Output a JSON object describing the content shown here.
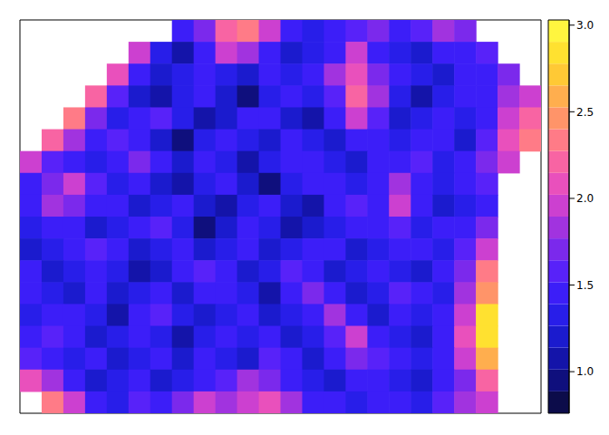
{
  "chart_data": {
    "type": "heatmap",
    "tick_labels": false,
    "cells": [
      [
        null,
        null,
        null,
        null,
        null,
        null,
        null,
        1.4,
        1.7,
        2.2,
        2.3,
        1.9,
        1.4,
        1.3,
        1.5,
        1.6,
        1.7,
        1.5,
        1.6,
        1.8,
        1.7,
        null,
        null,
        null
      ],
      [
        null,
        null,
        null,
        null,
        null,
        1.9,
        1.3,
        1.1,
        1.5,
        2.0,
        1.8,
        1.4,
        1.2,
        1.3,
        1.5,
        1.9,
        1.5,
        1.3,
        1.2,
        1.4,
        1.5,
        1.6,
        null,
        null
      ],
      [
        null,
        null,
        null,
        null,
        2.1,
        1.5,
        1.2,
        1.3,
        1.4,
        1.3,
        1.2,
        1.4,
        1.3,
        1.5,
        1.8,
        2.1,
        1.7,
        1.4,
        1.3,
        1.2,
        1.4,
        1.5,
        1.7,
        null
      ],
      [
        null,
        null,
        null,
        2.2,
        1.6,
        1.2,
        1.1,
        1.3,
        1.5,
        1.2,
        1.0,
        1.3,
        1.4,
        1.3,
        1.6,
        2.2,
        1.8,
        1.3,
        1.1,
        1.3,
        1.5,
        1.4,
        1.8,
        2.0
      ],
      [
        null,
        null,
        2.3,
        1.7,
        1.3,
        1.4,
        1.6,
        1.3,
        1.1,
        1.2,
        1.4,
        1.5,
        1.2,
        1.1,
        1.4,
        1.9,
        1.6,
        1.2,
        1.3,
        1.5,
        1.3,
        1.5,
        2.0,
        2.2
      ],
      [
        null,
        2.2,
        1.8,
        1.4,
        1.6,
        1.5,
        1.2,
        1.0,
        1.3,
        1.5,
        1.3,
        1.2,
        1.4,
        1.3,
        1.2,
        1.5,
        1.4,
        1.3,
        1.5,
        1.4,
        1.2,
        1.6,
        2.1,
        2.3
      ],
      [
        1.9,
        1.6,
        1.5,
        1.3,
        1.4,
        1.7,
        1.4,
        1.2,
        1.4,
        1.3,
        1.1,
        1.3,
        1.5,
        1.4,
        1.3,
        1.2,
        1.4,
        1.5,
        1.6,
        1.3,
        1.4,
        1.7,
        2.0,
        null
      ],
      [
        1.5,
        1.7,
        1.9,
        1.6,
        1.3,
        1.5,
        1.2,
        1.1,
        1.3,
        1.4,
        1.2,
        1.0,
        1.3,
        1.4,
        1.5,
        1.3,
        1.4,
        1.8,
        1.5,
        1.3,
        1.4,
        1.6,
        null,
        null
      ],
      [
        1.4,
        1.8,
        1.7,
        1.5,
        1.4,
        1.2,
        1.3,
        1.5,
        1.2,
        1.1,
        1.3,
        1.4,
        1.2,
        1.1,
        1.4,
        1.6,
        1.5,
        1.9,
        1.4,
        1.2,
        1.3,
        1.5,
        null,
        null
      ],
      [
        1.3,
        1.5,
        1.4,
        1.2,
        1.3,
        1.4,
        1.6,
        1.3,
        1.0,
        1.2,
        1.5,
        1.3,
        1.1,
        1.2,
        1.3,
        1.5,
        1.4,
        1.6,
        1.3,
        1.4,
        1.5,
        1.7,
        null,
        null
      ],
      [
        1.2,
        1.3,
        1.5,
        1.6,
        1.4,
        1.2,
        1.3,
        1.4,
        1.2,
        1.3,
        1.4,
        1.2,
        1.3,
        1.5,
        1.4,
        1.2,
        1.3,
        1.4,
        1.5,
        1.3,
        1.6,
        2.0,
        null,
        null
      ],
      [
        1.4,
        1.2,
        1.3,
        1.5,
        1.3,
        1.1,
        1.2,
        1.5,
        1.6,
        1.4,
        1.2,
        1.3,
        1.6,
        1.4,
        1.2,
        1.3,
        1.5,
        1.3,
        1.2,
        1.4,
        1.7,
        2.3,
        null,
        null
      ],
      [
        1.5,
        1.3,
        1.2,
        1.4,
        1.2,
        1.3,
        1.4,
        1.2,
        1.4,
        1.5,
        1.3,
        1.1,
        1.4,
        1.7,
        1.5,
        1.2,
        1.3,
        1.6,
        1.4,
        1.3,
        1.8,
        2.5,
        null,
        null
      ],
      [
        1.3,
        1.4,
        1.5,
        1.3,
        1.1,
        1.4,
        1.6,
        1.3,
        1.2,
        1.3,
        1.5,
        1.2,
        1.3,
        1.5,
        1.8,
        1.4,
        1.2,
        1.4,
        1.3,
        1.5,
        2.0,
        2.8,
        null,
        null
      ],
      [
        1.4,
        1.6,
        1.4,
        1.2,
        1.3,
        1.5,
        1.3,
        1.1,
        1.3,
        1.4,
        1.3,
        1.4,
        1.2,
        1.3,
        1.6,
        1.9,
        1.5,
        1.3,
        1.2,
        1.4,
        2.1,
        2.9,
        null,
        null
      ],
      [
        1.6,
        1.5,
        1.3,
        1.4,
        1.2,
        1.3,
        1.4,
        1.2,
        1.5,
        1.3,
        1.2,
        1.6,
        1.4,
        1.2,
        1.4,
        1.7,
        1.6,
        1.4,
        1.3,
        1.5,
        1.9,
        2.6,
        null,
        null
      ],
      [
        2.1,
        1.8,
        1.4,
        1.2,
        1.3,
        1.5,
        1.2,
        1.3,
        1.4,
        1.6,
        1.8,
        1.7,
        1.5,
        1.3,
        1.2,
        1.4,
        1.5,
        1.3,
        1.2,
        1.4,
        1.7,
        2.2,
        null,
        null
      ],
      [
        null,
        2.3,
        1.9,
        1.5,
        1.3,
        1.6,
        1.4,
        1.7,
        1.9,
        1.8,
        2.0,
        2.1,
        1.8,
        1.5,
        1.4,
        1.3,
        1.5,
        1.4,
        1.3,
        1.6,
        1.8,
        2.0,
        null,
        null
      ]
    ],
    "colorbar": {
      "range": [
        0.76,
        3.03
      ],
      "ticks": [
        {
          "value": 1,
          "label": "1.0"
        },
        1.5,
        {
          "value": 2,
          "label": "2.0"
        },
        2.5,
        {
          "value": 3,
          "label": "3.0"
        }
      ]
    }
  }
}
